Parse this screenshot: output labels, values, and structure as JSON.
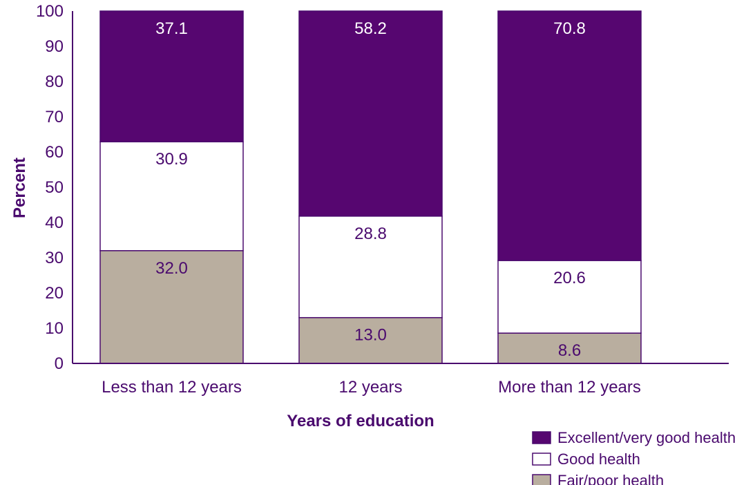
{
  "chart_data": {
    "type": "bar",
    "stacked": true,
    "categories": [
      "Less than 12 years",
      "12 years",
      "More than 12 years"
    ],
    "series": [
      {
        "name": "Fair/poor health",
        "values": [
          32.0,
          13.0,
          8.6
        ],
        "labels": [
          "32.0",
          "13.0",
          "8.6"
        ],
        "color": "#b9ae9f"
      },
      {
        "name": "Good health",
        "values": [
          30.9,
          28.8,
          20.6
        ],
        "labels": [
          "30.9",
          "28.8",
          "20.6"
        ],
        "color": "#ffffff"
      },
      {
        "name": "Excellent/very good health",
        "values": [
          37.1,
          58.2,
          70.8
        ],
        "labels": [
          "37.1",
          "58.2",
          "70.8"
        ],
        "color": "#560670"
      }
    ],
    "legend_order": [
      "Excellent/very good health",
      "Good health",
      "Fair/poor health"
    ],
    "title": "",
    "xlabel": "Years of education",
    "ylabel": "Percent",
    "ylim": [
      0,
      100
    ],
    "yticks": [
      "0",
      "10",
      "20",
      "30",
      "40",
      "50",
      "60",
      "70",
      "80",
      "90",
      "100"
    ],
    "grid": false,
    "legend_position": "bottom-right",
    "colors": {
      "text": "#4a0a6e",
      "axis": "#4a0a6e",
      "label_on_dark": "#ffffff",
      "label_on_light": "#4a0a6e"
    }
  }
}
